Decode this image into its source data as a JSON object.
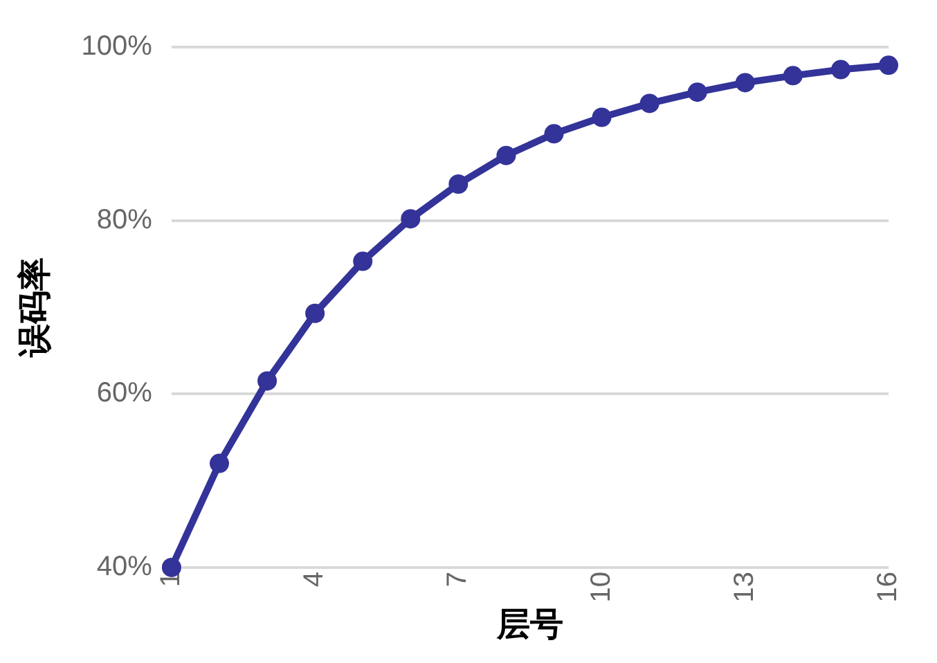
{
  "chart_data": {
    "type": "line",
    "xlabel": "层号",
    "ylabel": "误码率",
    "x": [
      1,
      2,
      3,
      4,
      5,
      6,
      7,
      8,
      9,
      10,
      11,
      12,
      13,
      14,
      15,
      16
    ],
    "series": [
      {
        "color": "#333399",
        "values": [
          40,
          52,
          61.5,
          69.3,
          75.3,
          80.2,
          84.2,
          87.5,
          90,
          91.9,
          93.5,
          94.8,
          95.9,
          96.7,
          97.4,
          97.9
        ]
      }
    ],
    "xlim": [
      1,
      16
    ],
    "xticks": [
      1,
      4,
      7,
      10,
      13,
      16
    ],
    "ylim": [
      40,
      100
    ],
    "yticks": [
      {
        "value": 40,
        "label": "40%"
      },
      {
        "value": 60,
        "label": "60%"
      },
      {
        "value": 80,
        "label": "80%"
      },
      {
        "value": 100,
        "label": "100%"
      }
    ],
    "grid": "y",
    "marker": "circle",
    "line_style": "solid",
    "legend": false
  }
}
